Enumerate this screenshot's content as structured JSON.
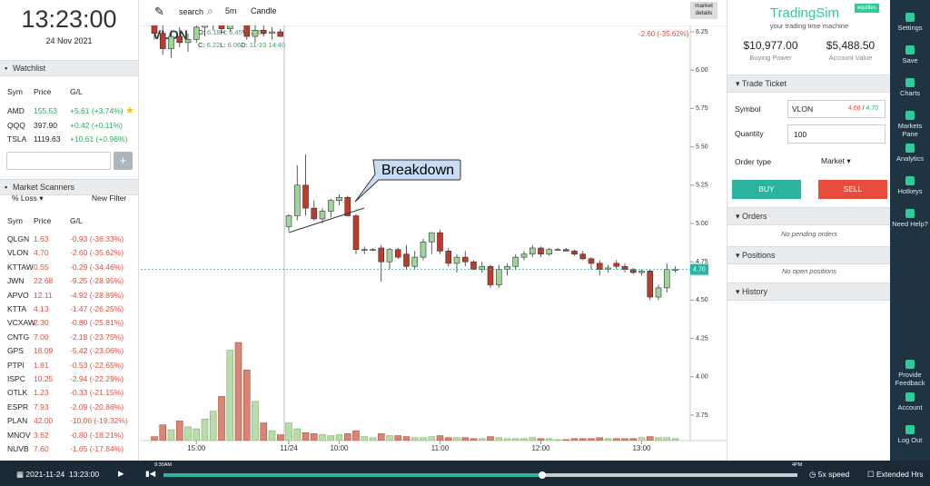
{
  "clock": {
    "time": "13:23:00",
    "date": "24 Nov 2021"
  },
  "watchlist": {
    "title": "Watchlist",
    "headers": [
      "Sym",
      "Price",
      "G/L"
    ],
    "rows": [
      [
        "AMD",
        "155.53",
        "+5.61 (+3.74%)"
      ],
      [
        "QQQ",
        "397.90",
        "+0.42 (+0.11%)"
      ],
      [
        "TSLA",
        "1119.63",
        "+10.61 (+0.96%)"
      ]
    ]
  },
  "scanners": {
    "title": "Market Scanners",
    "filter": "% Loss",
    "new_filter": "New Filter",
    "headers": [
      "Sym",
      "Price",
      "G/L"
    ],
    "rows": [
      [
        "QLGN",
        "1.63",
        "-0.93 (-36.33%)"
      ],
      [
        "VLON",
        "4.70",
        "-2.60 (-35.62%)"
      ],
      [
        "KTTAW",
        "0.55",
        "-0.29 (-34.46%)"
      ],
      [
        "JWN",
        "22.68",
        "-9.25 (-28.95%)"
      ],
      [
        "APVO",
        "12.11",
        "-4.92 (-28.89%)"
      ],
      [
        "KTTA",
        "4.13",
        "-1.47 (-26.25%)"
      ],
      [
        "VCXAW",
        "2.30",
        "-0.80 (-25.81%)"
      ],
      [
        "CNTG",
        "7.00",
        "-2.18 (-23.75%)"
      ],
      [
        "GPS",
        "18.09",
        "-5.42 (-23.06%)"
      ],
      [
        "PTPI",
        "1.81",
        "-0.53 (-22.65%)"
      ],
      [
        "ISPC",
        "10.25",
        "-2.94 (-22.29%)"
      ],
      [
        "OTLK",
        "1.23",
        "-0.33 (-21.15%)"
      ],
      [
        "ESPR",
        "7.93",
        "-2.09 (-20.86%)"
      ],
      [
        "PLAN",
        "42.00",
        "-10.06 (-19.32%)"
      ],
      [
        "MNOV",
        "3.62",
        "-0.80 (-18.21%)"
      ],
      [
        "NUVB",
        "7.60",
        "-1.65 (-17.84%)"
      ]
    ]
  },
  "toolbar": {
    "search": "search",
    "interval": "5m",
    "chart_type": "Candle",
    "market_details": "market details"
  },
  "legend": {
    "symbol": "VLON",
    "o_label": "O:",
    "o": "6.18",
    "h_label": "H:",
    "h": "6.45",
    "v_label": "V:",
    "v": "276k",
    "c_label": "C:",
    "c": "6.22",
    "l_label": "L:",
    "l": "6.06",
    "d_label": "D:",
    "d": "11-23 14:40",
    "change": "-2.60 (-35.62%)"
  },
  "annotation": "Breakdown",
  "chart_data": {
    "type": "candlestick",
    "up_color": "#9fd49a",
    "down_color": "#c0392b",
    "volume_up_color": "#b8dcaa",
    "volume_down_color": "#d98573",
    "ylim": [
      3.75,
      6.25
    ],
    "yticks": [
      {
        "value": 3.75,
        "label": "3.75"
      },
      {
        "value": 4,
        "label": "4.00"
      },
      {
        "value": 4.25,
        "label": "4.25"
      },
      {
        "value": 4.5,
        "label": "4.50"
      },
      {
        "value": 4.75,
        "label": "4.75"
      },
      {
        "value": 5,
        "label": "5.00"
      },
      {
        "value": 5.25,
        "label": "5.25"
      },
      {
        "value": 5.5,
        "label": "5.50"
      },
      {
        "value": 5.75,
        "label": "5.75"
      },
      {
        "value": 6,
        "label": "6.00"
      },
      {
        "value": 6.25,
        "label": "6.25"
      }
    ],
    "xticks": [
      {
        "value": 5,
        "label": "15:00"
      },
      {
        "value": 16,
        "label": "11/24"
      },
      {
        "value": 22,
        "label": "10:00"
      },
      {
        "value": 34,
        "label": "11:00"
      },
      {
        "value": 46,
        "label": "12:00"
      },
      {
        "value": 58,
        "label": "13:00"
      }
    ],
    "last_price": {
      "value": 4.7,
      "label": "4.70"
    },
    "open": [
      6.3,
      6.24,
      6.14,
      6.22,
      6.18,
      6.2,
      6.28,
      6.3,
      6.34,
      6.27,
      6.4,
      6.32,
      6.22,
      6.26,
      6.24,
      6.25,
      4.98,
      5.05,
      5.25,
      5.1,
      5.03,
      5.08,
      5.15,
      5.17,
      5.05,
      4.83,
      4.83,
      4.84,
      4.75,
      4.83,
      4.8,
      4.72,
      4.78,
      4.88,
      4.94,
      4.82,
      4.74,
      4.78,
      4.75,
      4.7,
      4.72,
      4.6,
      4.7,
      4.72,
      4.78,
      4.8,
      4.84,
      4.8,
      4.83,
      4.83,
      4.82,
      4.8,
      4.77,
      4.74,
      4.7,
      4.74,
      4.72,
      4.7,
      4.68,
      4.69,
      4.52,
      4.58,
      4.7
    ],
    "high": [
      6.36,
      6.3,
      6.26,
      6.28,
      6.24,
      6.32,
      6.34,
      6.4,
      6.38,
      6.45,
      6.44,
      6.36,
      6.3,
      6.3,
      6.28,
      6.27,
      5.06,
      5.38,
      5.45,
      5.15,
      5.1,
      5.16,
      5.19,
      5.18,
      5.06,
      4.85,
      4.84,
      4.86,
      4.84,
      4.84,
      4.86,
      4.82,
      4.9,
      4.94,
      4.96,
      4.84,
      4.8,
      4.82,
      4.76,
      4.75,
      4.73,
      4.73,
      4.74,
      4.8,
      4.82,
      4.86,
      4.85,
      4.84,
      4.84,
      4.84,
      4.83,
      4.82,
      4.78,
      4.76,
      4.73,
      4.76,
      4.74,
      4.71,
      4.7,
      4.7,
      4.6,
      4.74,
      4.72
    ],
    "low": [
      6.2,
      6.1,
      6.08,
      6.15,
      6.12,
      6.18,
      6.22,
      6.26,
      6.25,
      6.25,
      6.3,
      6.2,
      6.18,
      6.22,
      6.2,
      6.22,
      4.95,
      5.02,
      5.05,
      5.02,
      5.0,
      5.04,
      5.12,
      5.05,
      4.8,
      4.8,
      4.82,
      4.62,
      4.7,
      4.77,
      4.7,
      4.7,
      4.76,
      4.8,
      4.8,
      4.72,
      4.68,
      4.72,
      4.7,
      4.68,
      4.58,
      4.58,
      4.66,
      4.7,
      4.76,
      4.78,
      4.78,
      4.79,
      4.82,
      4.82,
      4.79,
      4.76,
      4.7,
      4.66,
      4.68,
      4.7,
      4.68,
      4.67,
      4.66,
      4.5,
      4.5,
      4.55,
      4.68
    ],
    "close": [
      6.24,
      6.14,
      6.22,
      6.18,
      6.2,
      6.28,
      6.3,
      6.34,
      6.27,
      6.4,
      6.32,
      6.22,
      6.26,
      6.24,
      6.25,
      6.22,
      5.05,
      5.25,
      5.1,
      5.03,
      5.08,
      5.15,
      5.17,
      5.05,
      4.83,
      4.83,
      4.83,
      4.75,
      4.83,
      4.78,
      4.72,
      4.78,
      4.88,
      4.94,
      4.82,
      4.74,
      4.78,
      4.75,
      4.7,
      4.72,
      4.6,
      4.7,
      4.72,
      4.78,
      4.8,
      4.84,
      4.8,
      4.83,
      4.83,
      4.82,
      4.8,
      4.77,
      4.74,
      4.7,
      4.71,
      4.72,
      4.7,
      4.68,
      4.69,
      4.52,
      4.58,
      4.7,
      4.7
    ],
    "volume": [
      4,
      16,
      11,
      20,
      14,
      12,
      22,
      30,
      45,
      92,
      100,
      72,
      40,
      18,
      10,
      6,
      18,
      12,
      8,
      7,
      6,
      5,
      6,
      7,
      10,
      4,
      3,
      7,
      5,
      5,
      4,
      3,
      3,
      4,
      5,
      3,
      3,
      3,
      2,
      2,
      4,
      3,
      2,
      2,
      2,
      3,
      2,
      2,
      1,
      1,
      2,
      2,
      2,
      3,
      2,
      2,
      2,
      2,
      3,
      4,
      3,
      3,
      2
    ]
  },
  "account": {
    "brand": "TradingSim",
    "badge": "equities",
    "tagline": "your trading time machine",
    "buying_power": "$10,977.00",
    "buying_power_label": "Buying Power",
    "account_value": "$5,488.50",
    "account_value_label": "Account Value"
  },
  "ticket": {
    "title": "Trade Ticket",
    "symbol_label": "Symbol",
    "symbol": "VLON",
    "bid": "4.68",
    "sep": "/",
    "ask": "4.70",
    "quantity_label": "Quantity",
    "quantity": "100",
    "order_type_label": "Order type",
    "order_type": "Market",
    "buy": "BUY",
    "sell": "SELL"
  },
  "orders": {
    "title": "Orders",
    "empty": "No pending orders"
  },
  "positions": {
    "title": "Positions",
    "empty": "No open positions"
  },
  "history": {
    "title": "History"
  },
  "sidebar": {
    "top": [
      "Settings",
      "Save",
      "Charts",
      "Markets Pane",
      "Analytics",
      "Hotkeys",
      "Need Help?"
    ],
    "bottom": [
      "Provide Feedback",
      "Account",
      "Log Out"
    ]
  },
  "playback": {
    "date": "2021-11-24",
    "time": "13:23:00",
    "start": "9:30AM",
    "end": "4PM",
    "speed": "5x speed",
    "extended": "Extended Hrs"
  }
}
